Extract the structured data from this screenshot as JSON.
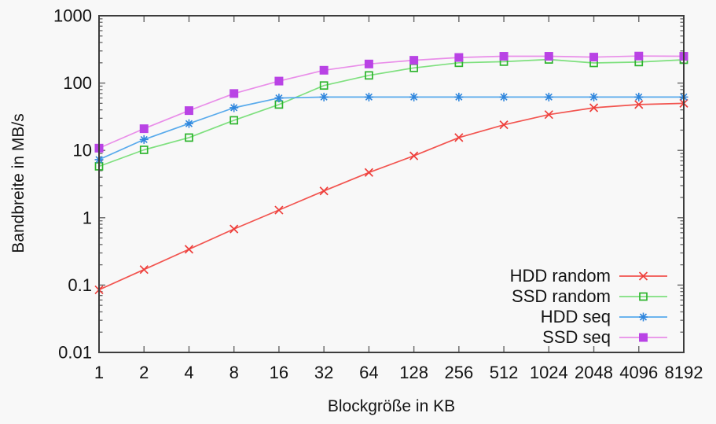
{
  "colors": {
    "background": "#f8f8f8",
    "border": "#3d3d3d",
    "tick": "#666666",
    "text": "#141414"
  },
  "chart_data": {
    "type": "line",
    "title": "",
    "xlabel": "Blockgröße in KB",
    "ylabel": "Bandbreite in MB/s",
    "x_scale": "log2",
    "y_scale": "log10",
    "xlim": [
      1,
      8192
    ],
    "ylim": [
      0.01,
      1000
    ],
    "grid": false,
    "legend_position": "inside-bottom-right",
    "x": [
      1,
      2,
      4,
      8,
      16,
      32,
      64,
      128,
      256,
      512,
      1024,
      2048,
      4096,
      8192
    ],
    "xtick_labels": [
      "1",
      "2",
      "4",
      "8",
      "16",
      "32",
      "64",
      "128",
      "256",
      "512",
      "1024",
      "2048",
      "4096",
      "8192"
    ],
    "ytick_values": [
      0.01,
      0.1,
      1,
      10,
      100,
      1000
    ],
    "ytick_labels": [
      "0.01",
      "0.1",
      "1",
      "10",
      "100",
      "1000"
    ],
    "series": [
      {
        "name": "HDD random",
        "marker": "cross",
        "line_color": "#f2544f",
        "marker_color": "#ee3f3b",
        "values": [
          0.085,
          0.17,
          0.34,
          0.68,
          1.3,
          2.5,
          4.7,
          8.3,
          15.5,
          24,
          34,
          43,
          48,
          50
        ]
      },
      {
        "name": "SSD random",
        "marker": "open-square",
        "line_color": "#7fe07f",
        "marker_color": "#2db42d",
        "values": [
          5.8,
          10.2,
          15.5,
          28,
          48,
          92,
          130,
          168,
          200,
          208,
          224,
          199,
          205,
          222
        ]
      },
      {
        "name": "HDD seq",
        "marker": "star",
        "line_color": "#58aaec",
        "marker_color": "#2f86dd",
        "values": [
          7.3,
          14.5,
          25,
          43,
          60,
          62,
          62,
          62,
          62,
          62,
          62,
          62,
          62,
          62
        ]
      },
      {
        "name": "SSD seq",
        "marker": "filled-square",
        "line_color": "#e98ee9",
        "marker_color": "#b943e5",
        "values": [
          10.8,
          21,
          39,
          70,
          107,
          155,
          192,
          218,
          240,
          250,
          250,
          243,
          252,
          250
        ]
      }
    ]
  }
}
